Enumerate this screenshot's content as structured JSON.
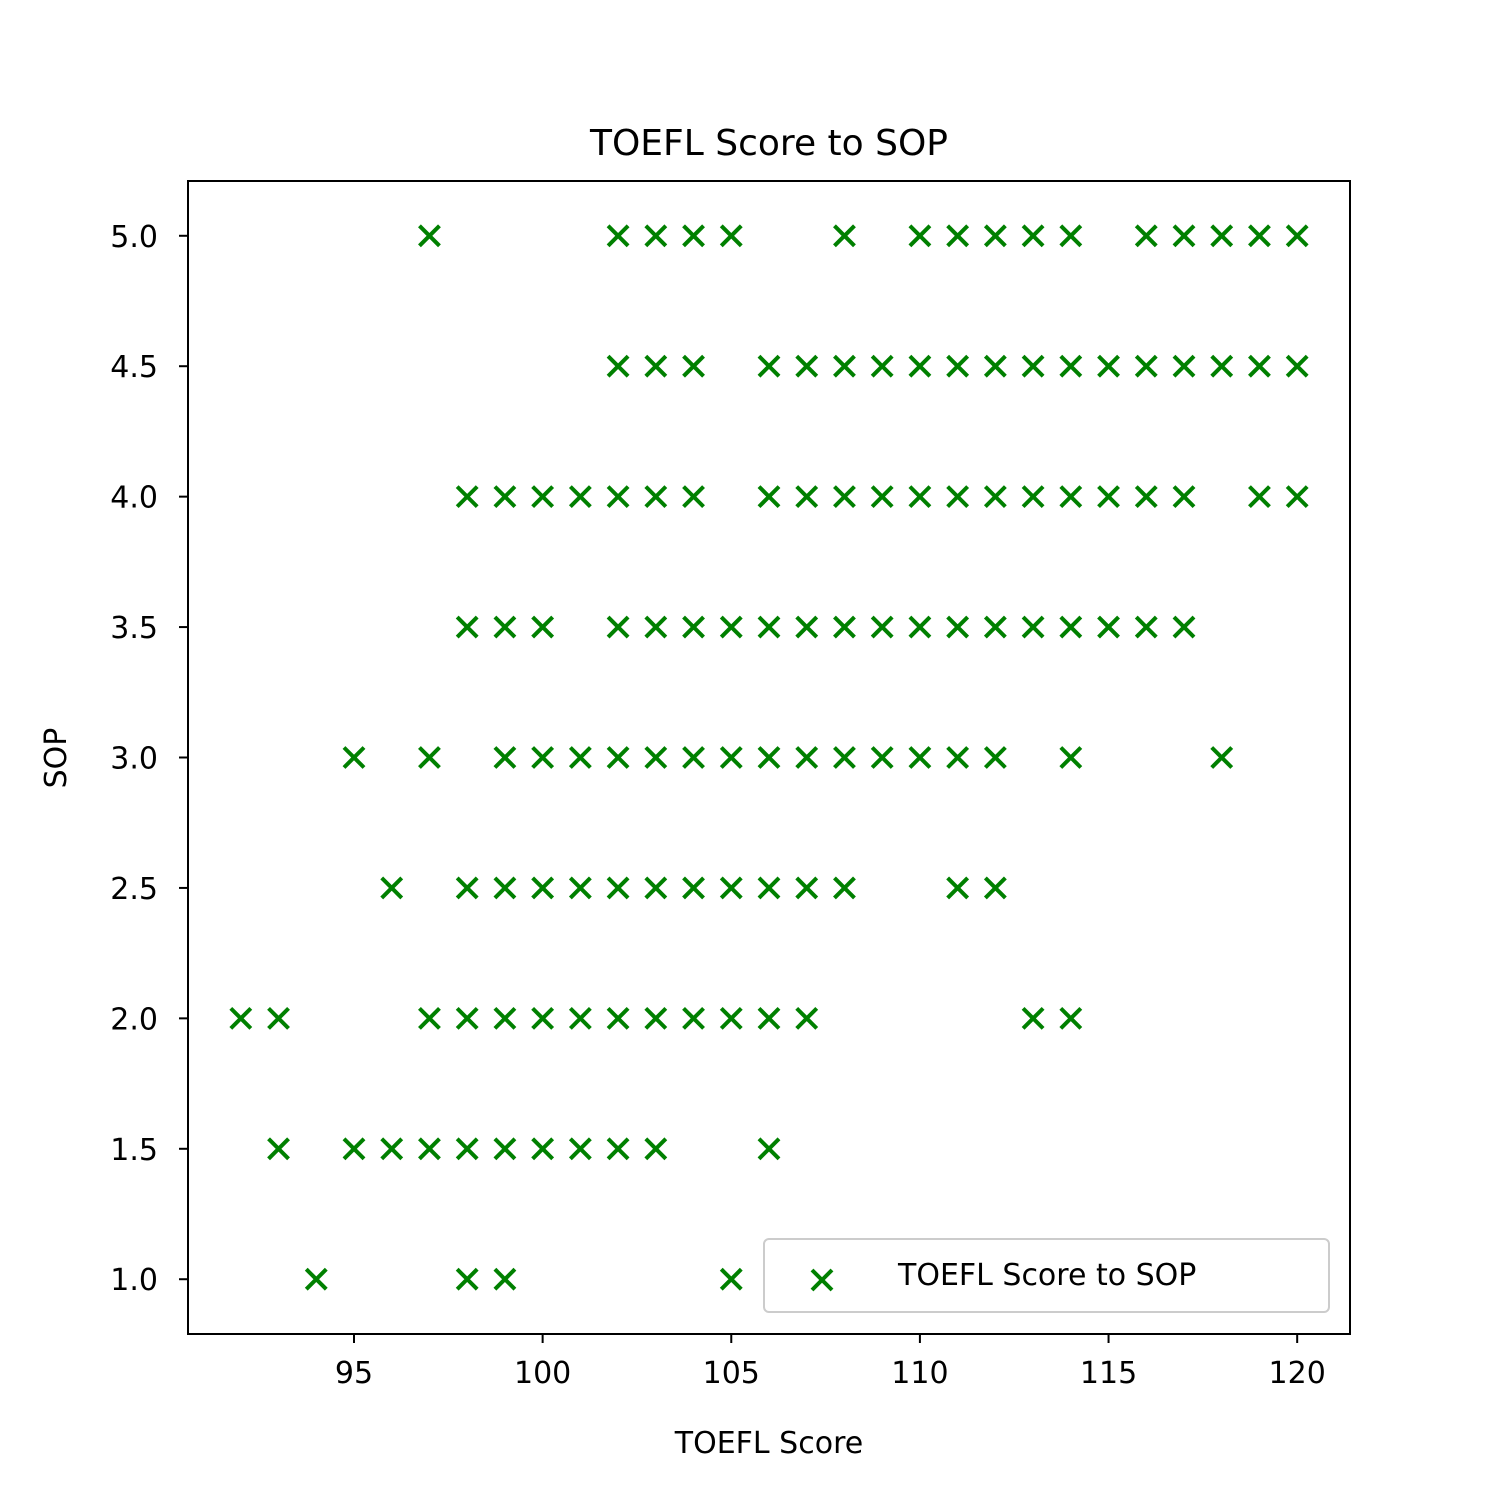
{
  "chart_data": {
    "type": "scatter",
    "title": "TOEFL Score to SOP",
    "xlabel": "TOEFL Score",
    "ylabel": "SOP",
    "xlim": [
      90.6,
      121.4
    ],
    "ylim": [
      0.79,
      5.21
    ],
    "xticks": [
      95,
      100,
      105,
      110,
      115,
      120
    ],
    "yticks": [
      1.0,
      1.5,
      2.0,
      2.5,
      3.0,
      3.5,
      4.0,
      4.5,
      5.0
    ],
    "grid": false,
    "legend": {
      "placement": "lower-right",
      "entries": [
        "TOEFL Score to SOP"
      ]
    },
    "marker": "x",
    "color": "#008000",
    "series": [
      {
        "name": "TOEFL Score to SOP",
        "points": [
          [
            97,
            5.0
          ],
          [
            102,
            5.0
          ],
          [
            103,
            5.0
          ],
          [
            104,
            5.0
          ],
          [
            105,
            5.0
          ],
          [
            108,
            5.0
          ],
          [
            110,
            5.0
          ],
          [
            111,
            5.0
          ],
          [
            112,
            5.0
          ],
          [
            113,
            5.0
          ],
          [
            114,
            5.0
          ],
          [
            116,
            5.0
          ],
          [
            117,
            5.0
          ],
          [
            118,
            5.0
          ],
          [
            119,
            5.0
          ],
          [
            120,
            5.0
          ],
          [
            102,
            4.5
          ],
          [
            103,
            4.5
          ],
          [
            104,
            4.5
          ],
          [
            106,
            4.5
          ],
          [
            107,
            4.5
          ],
          [
            108,
            4.5
          ],
          [
            109,
            4.5
          ],
          [
            110,
            4.5
          ],
          [
            111,
            4.5
          ],
          [
            112,
            4.5
          ],
          [
            113,
            4.5
          ],
          [
            114,
            4.5
          ],
          [
            115,
            4.5
          ],
          [
            116,
            4.5
          ],
          [
            117,
            4.5
          ],
          [
            118,
            4.5
          ],
          [
            119,
            4.5
          ],
          [
            120,
            4.5
          ],
          [
            98,
            4.0
          ],
          [
            99,
            4.0
          ],
          [
            100,
            4.0
          ],
          [
            101,
            4.0
          ],
          [
            102,
            4.0
          ],
          [
            103,
            4.0
          ],
          [
            104,
            4.0
          ],
          [
            106,
            4.0
          ],
          [
            107,
            4.0
          ],
          [
            108,
            4.0
          ],
          [
            109,
            4.0
          ],
          [
            110,
            4.0
          ],
          [
            111,
            4.0
          ],
          [
            112,
            4.0
          ],
          [
            113,
            4.0
          ],
          [
            114,
            4.0
          ],
          [
            115,
            4.0
          ],
          [
            116,
            4.0
          ],
          [
            117,
            4.0
          ],
          [
            119,
            4.0
          ],
          [
            120,
            4.0
          ],
          [
            98,
            3.5
          ],
          [
            99,
            3.5
          ],
          [
            100,
            3.5
          ],
          [
            102,
            3.5
          ],
          [
            103,
            3.5
          ],
          [
            104,
            3.5
          ],
          [
            105,
            3.5
          ],
          [
            106,
            3.5
          ],
          [
            107,
            3.5
          ],
          [
            108,
            3.5
          ],
          [
            109,
            3.5
          ],
          [
            110,
            3.5
          ],
          [
            111,
            3.5
          ],
          [
            112,
            3.5
          ],
          [
            113,
            3.5
          ],
          [
            114,
            3.5
          ],
          [
            115,
            3.5
          ],
          [
            116,
            3.5
          ],
          [
            117,
            3.5
          ],
          [
            95,
            3.0
          ],
          [
            97,
            3.0
          ],
          [
            99,
            3.0
          ],
          [
            100,
            3.0
          ],
          [
            101,
            3.0
          ],
          [
            102,
            3.0
          ],
          [
            103,
            3.0
          ],
          [
            104,
            3.0
          ],
          [
            105,
            3.0
          ],
          [
            106,
            3.0
          ],
          [
            107,
            3.0
          ],
          [
            108,
            3.0
          ],
          [
            109,
            3.0
          ],
          [
            110,
            3.0
          ],
          [
            111,
            3.0
          ],
          [
            112,
            3.0
          ],
          [
            114,
            3.0
          ],
          [
            118,
            3.0
          ],
          [
            96,
            2.5
          ],
          [
            98,
            2.5
          ],
          [
            99,
            2.5
          ],
          [
            100,
            2.5
          ],
          [
            101,
            2.5
          ],
          [
            102,
            2.5
          ],
          [
            103,
            2.5
          ],
          [
            104,
            2.5
          ],
          [
            105,
            2.5
          ],
          [
            106,
            2.5
          ],
          [
            107,
            2.5
          ],
          [
            108,
            2.5
          ],
          [
            111,
            2.5
          ],
          [
            112,
            2.5
          ],
          [
            92,
            2.0
          ],
          [
            93,
            2.0
          ],
          [
            97,
            2.0
          ],
          [
            98,
            2.0
          ],
          [
            99,
            2.0
          ],
          [
            100,
            2.0
          ],
          [
            101,
            2.0
          ],
          [
            102,
            2.0
          ],
          [
            103,
            2.0
          ],
          [
            104,
            2.0
          ],
          [
            105,
            2.0
          ],
          [
            106,
            2.0
          ],
          [
            107,
            2.0
          ],
          [
            113,
            2.0
          ],
          [
            114,
            2.0
          ],
          [
            93,
            1.5
          ],
          [
            95,
            1.5
          ],
          [
            96,
            1.5
          ],
          [
            97,
            1.5
          ],
          [
            98,
            1.5
          ],
          [
            99,
            1.5
          ],
          [
            100,
            1.5
          ],
          [
            101,
            1.5
          ],
          [
            102,
            1.5
          ],
          [
            103,
            1.5
          ],
          [
            106,
            1.5
          ],
          [
            94,
            1.0
          ],
          [
            98,
            1.0
          ],
          [
            99,
            1.0
          ],
          [
            105,
            1.0
          ]
        ]
      }
    ]
  }
}
